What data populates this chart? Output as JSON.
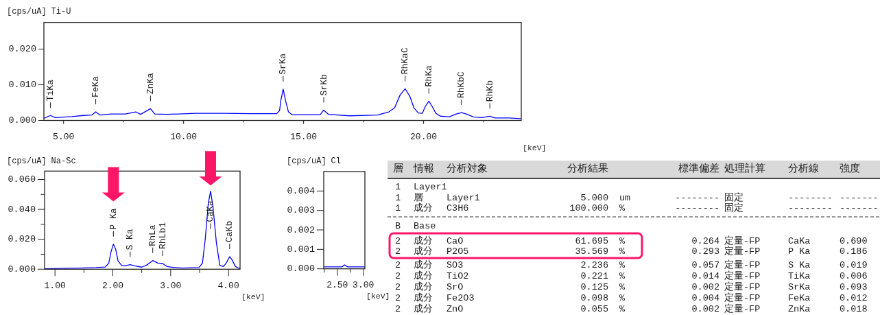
{
  "chart_data": [
    {
      "type": "line",
      "ylabel": "[cps/uA]",
      "title": "Ti-U",
      "xlabel": "[keV]",
      "xlim": [
        4.18,
        24.07
      ],
      "ylim": [
        0,
        0.0275
      ],
      "xticks": [
        {
          "value": 5,
          "label": "5.00"
        },
        {
          "value": 7.5,
          "label": null
        },
        {
          "value": 10,
          "label": "10.00"
        },
        {
          "value": 12.5,
          "label": null
        },
        {
          "value": 15,
          "label": "15.00"
        },
        {
          "value": 17.5,
          "label": null
        },
        {
          "value": 20,
          "label": "20.00"
        },
        {
          "value": 22.5,
          "label": null
        }
      ],
      "yticks": [
        {
          "value": 0,
          "label": "0.000"
        },
        {
          "value": 0.01,
          "label": "0.010"
        },
        {
          "value": 0.02,
          "label": "0.020"
        }
      ],
      "color": "#0000ff",
      "x": [
        4.18,
        4.45,
        4.65,
        5.35,
        5.82,
        6.17,
        6.34,
        6.52,
        6.99,
        7.57,
        8.01,
        8.21,
        8.62,
        8.8,
        9.32,
        10.49,
        11.66,
        12.83,
        13.88,
        14.0,
        14.05,
        14.15,
        14.25,
        14.37,
        14.52,
        15.16,
        15.69,
        15.84,
        16.04,
        16.92,
        18.08,
        18.55,
        18.79,
        19.02,
        19.23,
        19.43,
        19.6,
        19.78,
        19.95,
        20.07,
        20.22,
        20.36,
        20.51,
        20.7,
        21.06,
        21.36,
        21.58,
        21.78,
        22.07,
        22.43,
        22.76,
        22.97,
        23.56,
        24.04
      ],
      "values": [
        0.0006,
        0.0014,
        0.0008,
        0.0011,
        0.0014,
        0.0015,
        0.0024,
        0.0015,
        0.0018,
        0.0018,
        0.0024,
        0.0017,
        0.0033,
        0.0018,
        0.0017,
        0.002,
        0.002,
        0.0019,
        0.0019,
        0.0028,
        0.0055,
        0.0088,
        0.0055,
        0.0024,
        0.0016,
        0.0016,
        0.0016,
        0.0029,
        0.0017,
        0.0013,
        0.0015,
        0.0024,
        0.0035,
        0.0071,
        0.0089,
        0.0067,
        0.0035,
        0.0021,
        0.002,
        0.0039,
        0.0054,
        0.0039,
        0.002,
        0.0012,
        0.001,
        0.0018,
        0.0022,
        0.0018,
        0.001,
        0.0008,
        0.0012,
        0.0007,
        0.0007,
        0.0005
      ],
      "annotations": [
        {
          "text": "TiKa",
          "x": 4.45,
          "y": 0.0014
        },
        {
          "text": "FeKa",
          "x": 6.34,
          "y": 0.0024
        },
        {
          "text": "ZnKa",
          "x": 8.62,
          "y": 0.0033
        },
        {
          "text": "SrKa",
          "x": 14.15,
          "y": 0.0088
        },
        {
          "text": "SrKb",
          "x": 15.84,
          "y": 0.0029
        },
        {
          "text": "RhKaC",
          "x": 19.23,
          "y": 0.0089
        },
        {
          "text": "RhKa",
          "x": 20.22,
          "y": 0.0054
        },
        {
          "text": "RhKbC",
          "x": 21.58,
          "y": 0.0022
        },
        {
          "text": "RhKb",
          "x": 22.76,
          "y": 0.0012
        }
      ]
    },
    {
      "type": "line",
      "ylabel": "[cps/uA]",
      "title": "Na-Sc",
      "xlabel": "[keV]",
      "xlim": [
        0.82,
        4.2
      ],
      "ylim": [
        0,
        0.0656
      ],
      "xticks": [
        {
          "value": 1,
          "label": "1.00"
        },
        {
          "value": 1.5,
          "label": null
        },
        {
          "value": 2,
          "label": "2.00"
        },
        {
          "value": 2.5,
          "label": null
        },
        {
          "value": 3,
          "label": "3.00"
        },
        {
          "value": 3.5,
          "label": null
        },
        {
          "value": 4,
          "label": "4.00"
        }
      ],
      "yticks": [
        {
          "value": 0,
          "label": "0.000"
        },
        {
          "value": 0.01,
          "label": null
        },
        {
          "value": 0.02,
          "label": "0.020"
        },
        {
          "value": 0.03,
          "label": null
        },
        {
          "value": 0.04,
          "label": "0.040"
        },
        {
          "value": 0.05,
          "label": null
        },
        {
          "value": 0.06,
          "label": "0.060"
        }
      ],
      "color": "#0000ff",
      "x": [
        0.82,
        1.43,
        1.71,
        1.87,
        1.93,
        1.97,
        2.01,
        2.05,
        2.09,
        2.15,
        2.21,
        2.3,
        2.38,
        2.5,
        2.58,
        2.69,
        2.78,
        2.86,
        2.94,
        3.06,
        3.21,
        3.49,
        3.55,
        3.6,
        3.65,
        3.69,
        3.73,
        3.79,
        3.85,
        3.91,
        3.96,
        4.02,
        4.06,
        4.12,
        4.2
      ],
      "values": [
        0.0003,
        0.0008,
        0.0011,
        0.0015,
        0.0041,
        0.0118,
        0.0168,
        0.0133,
        0.0056,
        0.0026,
        0.0023,
        0.0031,
        0.0023,
        0.0014,
        0.0026,
        0.0058,
        0.0041,
        0.0038,
        0.0018,
        0.0011,
        0.0008,
        0.0011,
        0.0041,
        0.0209,
        0.0438,
        0.0522,
        0.0423,
        0.0179,
        0.0026,
        0.0018,
        0.0041,
        0.0084,
        0.0064,
        0.0018,
        0.0003
      ],
      "annotations": [
        {
          "text": "P Ka",
          "x": 2.01,
          "y": 0.0168
        },
        {
          "text": "S Ka",
          "x": 2.3,
          "y": 0.0031
        },
        {
          "text": "RhLa",
          "x": 2.69,
          "y": 0.0058
        },
        {
          "text": "RhLb1",
          "x": 2.86,
          "y": 0.0038
        },
        {
          "text": "CaKa",
          "x": 3.69,
          "y": 0.0522
        },
        {
          "text": "CaKb",
          "x": 4.02,
          "y": 0.0084
        }
      ]
    },
    {
      "type": "line",
      "ylabel": "[cps/uA]",
      "title": "Cl",
      "xlabel": "[keV]",
      "xlim": [
        2.24,
        3.03
      ],
      "ylim": [
        0,
        0.005
      ],
      "xticks": [
        {
          "value": 2.25,
          "label": null
        },
        {
          "value": 2.5,
          "label": "2.50"
        },
        {
          "value": 2.75,
          "label": null
        },
        {
          "value": 3,
          "label": "3.00"
        }
      ],
      "yticks": [
        {
          "value": 0,
          "label": "0.000"
        },
        {
          "value": 0.001,
          "label": "0.001"
        },
        {
          "value": 0.002,
          "label": "0.002"
        },
        {
          "value": 0.003,
          "label": "0.003"
        },
        {
          "value": 0.004,
          "label": "0.004"
        }
      ],
      "color": "#0000ff",
      "x": [
        2.24,
        2.3,
        2.41,
        2.51,
        2.59,
        2.64,
        2.7,
        2.78,
        2.84,
        2.91,
        2.98,
        3.03
      ],
      "values": [
        0.0001,
        0.0001,
        0.0001,
        0.0001,
        0.0001,
        0.0002,
        0.0001,
        0.0001,
        0.0001,
        0.0001,
        0.0001,
        0.0001
      ]
    },
    {
      "type": "other",
      "annotations": [
        "層",
        "情報",
        "分析対象",
        "分析結果",
        "標準偏差",
        "処理計算",
        "分析線",
        "強度",
        "1",
        "Layer1",
        "1",
        "層",
        "Layer1",
        "5.000",
        "um",
        "--------",
        "固定",
        "--------",
        "-------",
        "1",
        "成分",
        "C3H6",
        "100.000",
        "%",
        "--------",
        "固定",
        "--------",
        "-------",
        "B",
        "Base",
        "2",
        "成分",
        "CaO",
        "61.695",
        "%",
        "0.264",
        "定量-FP",
        "CaKa",
        "0.690",
        "2",
        "成分",
        "P2O5",
        "35.569",
        "%",
        "0.293",
        "定量-FP",
        "P Ka",
        "0.186",
        "2",
        "成分",
        "SO3",
        "2.236",
        "%",
        "0.057",
        "定量-FP",
        "S Ka",
        "0.019",
        "2",
        "成分",
        "TiO2",
        "0.221",
        "%",
        "0.014",
        "定量-FP",
        "TiKa",
        "0.006",
        "2",
        "成分",
        "SrO",
        "0.125",
        "%",
        "0.002",
        "定量-FP",
        "SrKa",
        "0.093",
        "2",
        "成分",
        "Fe2O3",
        "0.098",
        "%",
        "0.004",
        "定量-FP",
        "FeKa",
        "0.012",
        "2",
        "成分",
        "ZnO",
        "0.055",
        "%",
        "0.002",
        "定量-FP",
        "ZnKa",
        "0.018"
      ]
    }
  ]
}
